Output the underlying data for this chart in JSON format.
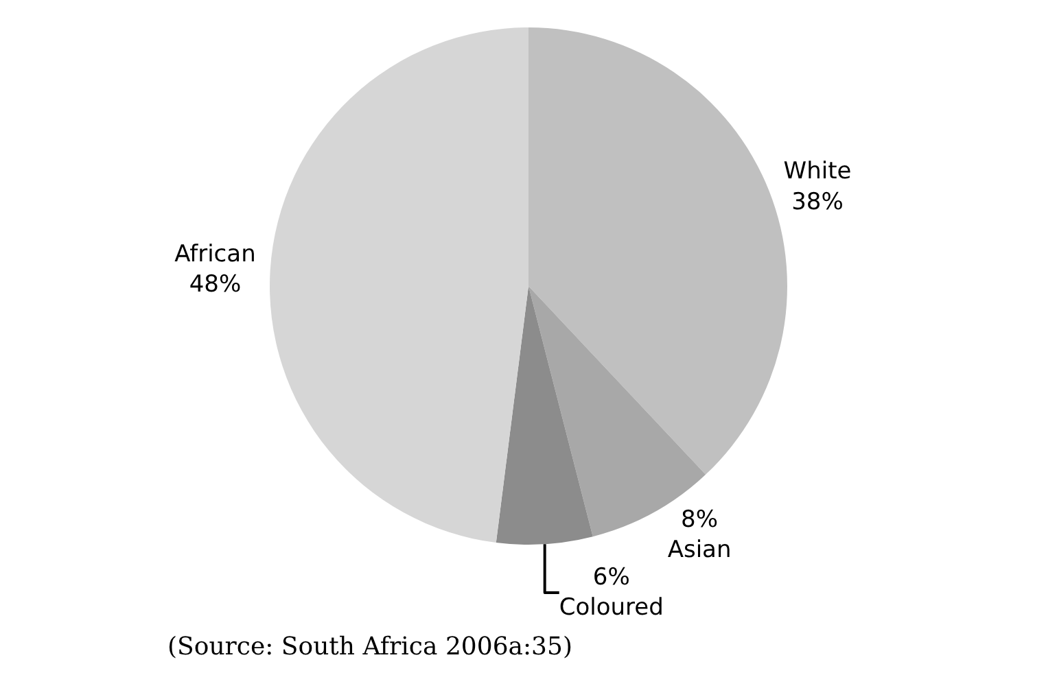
{
  "chart_data": {
    "type": "pie",
    "categories": [
      "White",
      "Asian",
      "Coloured",
      "African"
    ],
    "values": [
      38,
      8,
      6,
      48
    ],
    "colors": [
      "#c0c0c0",
      "#a8a8a8",
      "#8c8c8c",
      "#d6d6d6"
    ],
    "value_labels": [
      "38%",
      "8%",
      "6%",
      "48%"
    ],
    "legend": false,
    "annotations": [
      "(Source: South Africa 2006a:35)"
    ]
  }
}
